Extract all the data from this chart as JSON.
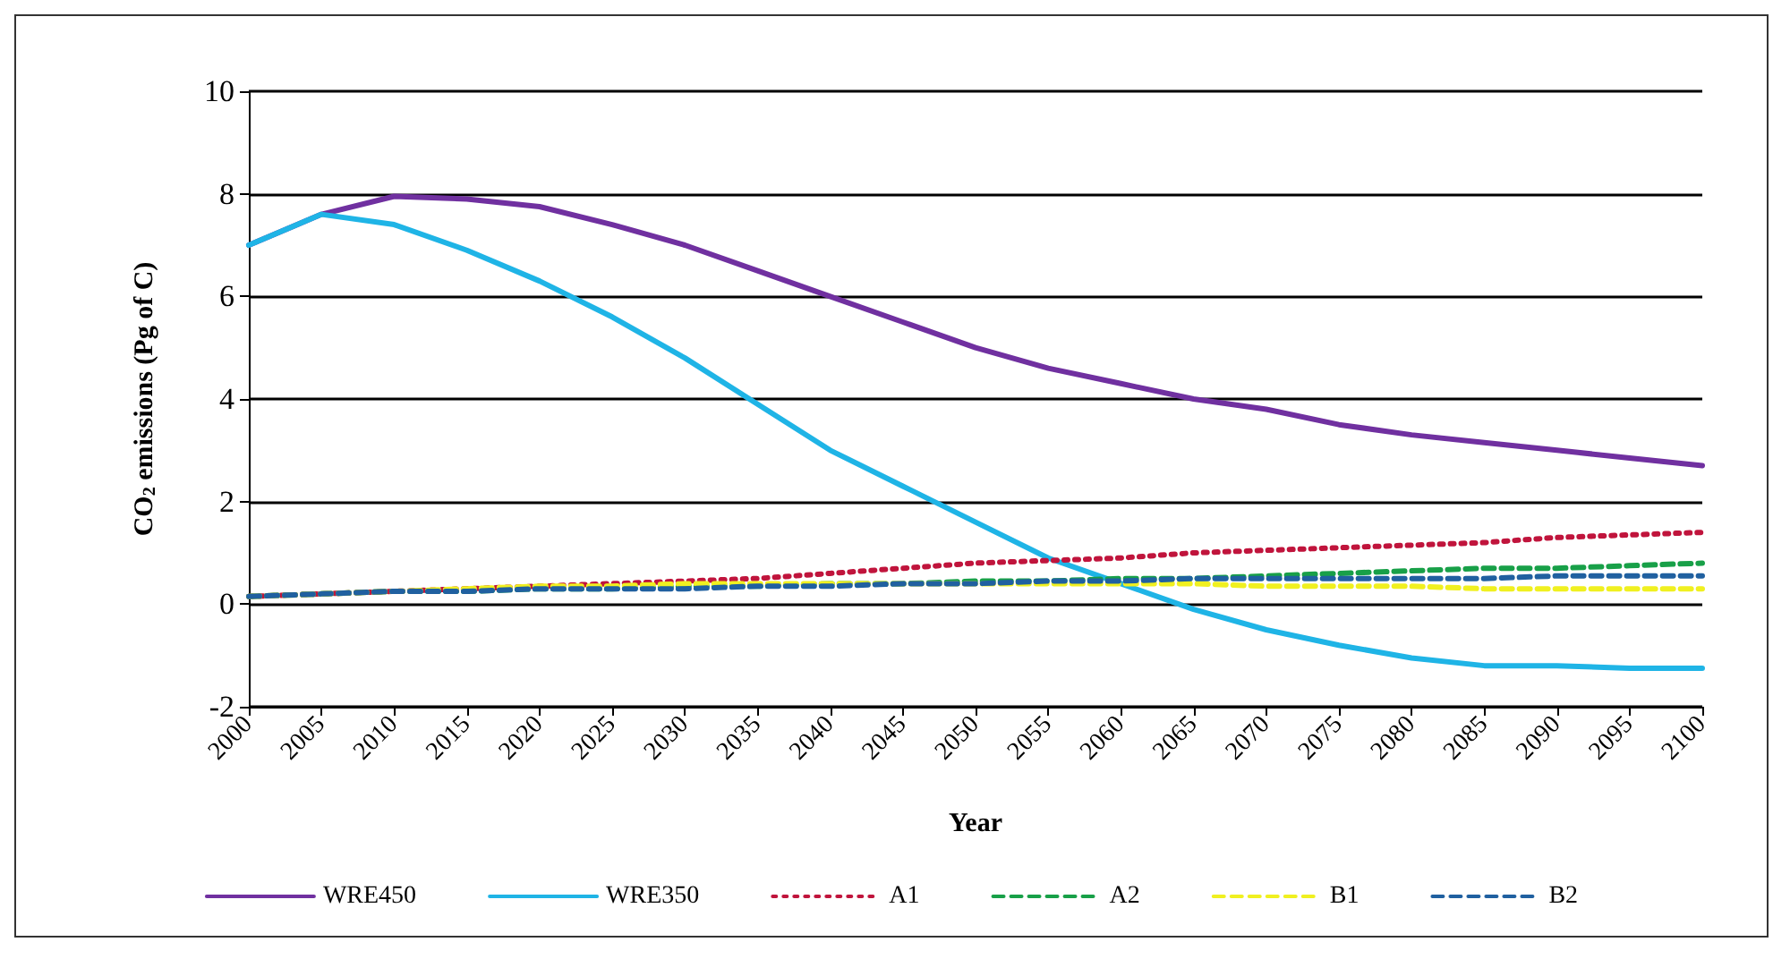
{
  "chart_data": {
    "type": "line",
    "xlabel": "Year",
    "ylabel": "CO$_{2}$ emissions (Pg of C)",
    "x": [
      2000,
      2005,
      2010,
      2015,
      2020,
      2025,
      2030,
      2035,
      2040,
      2045,
      2050,
      2055,
      2060,
      2065,
      2070,
      2075,
      2080,
      2085,
      2090,
      2095,
      2100
    ],
    "xlim": [
      2000,
      2100
    ],
    "xticks": [
      2000,
      2005,
      2010,
      2015,
      2020,
      2025,
      2030,
      2035,
      2040,
      2045,
      2050,
      2055,
      2060,
      2065,
      2070,
      2075,
      2080,
      2085,
      2090,
      2095,
      2100
    ],
    "ylim": [
      -2,
      10
    ],
    "yticks": [
      -2,
      0,
      2,
      4,
      6,
      8,
      10
    ],
    "grid": "y",
    "legend": "bottom",
    "marker": "none",
    "series": [
      {
        "name": "WRE450",
        "color": "#7030a0",
        "line_style": "solid",
        "values": [
          7.0,
          7.6,
          7.95,
          7.9,
          7.75,
          7.4,
          7.0,
          6.5,
          6.0,
          5.5,
          5.0,
          4.6,
          4.3,
          4.0,
          3.8,
          3.5,
          3.3,
          3.15,
          3.0,
          2.85,
          2.7
        ]
      },
      {
        "name": "WRE350",
        "color": "#1fb4e6",
        "line_style": "solid",
        "values": [
          7.0,
          7.6,
          7.4,
          6.9,
          6.3,
          5.6,
          4.8,
          3.9,
          3.0,
          2.3,
          1.6,
          0.9,
          0.4,
          -0.1,
          -0.5,
          -0.8,
          -1.05,
          -1.2,
          -1.2,
          -1.25,
          -1.25
        ]
      },
      {
        "name": "A1",
        "color": "#c0143c",
        "line_style": "dotted",
        "values": [
          0.15,
          0.2,
          0.25,
          0.3,
          0.35,
          0.4,
          0.45,
          0.5,
          0.6,
          0.7,
          0.8,
          0.85,
          0.9,
          1.0,
          1.05,
          1.1,
          1.15,
          1.2,
          1.3,
          1.35,
          1.4
        ]
      },
      {
        "name": "A2",
        "color": "#18a048",
        "line_style": "dashed",
        "values": [
          0.15,
          0.2,
          0.25,
          0.25,
          0.3,
          0.3,
          0.35,
          0.35,
          0.4,
          0.4,
          0.45,
          0.45,
          0.5,
          0.5,
          0.55,
          0.6,
          0.65,
          0.7,
          0.7,
          0.75,
          0.8
        ]
      },
      {
        "name": "B1",
        "color": "#f0f020",
        "line_style": "dashed",
        "values": [
          0.15,
          0.2,
          0.25,
          0.3,
          0.35,
          0.35,
          0.4,
          0.4,
          0.4,
          0.4,
          0.4,
          0.4,
          0.4,
          0.4,
          0.35,
          0.35,
          0.35,
          0.3,
          0.3,
          0.3,
          0.3
        ]
      },
      {
        "name": "B2",
        "color": "#2060a0",
        "line_style": "dashed",
        "values": [
          0.15,
          0.2,
          0.25,
          0.25,
          0.3,
          0.3,
          0.3,
          0.35,
          0.35,
          0.4,
          0.4,
          0.45,
          0.45,
          0.5,
          0.5,
          0.5,
          0.5,
          0.5,
          0.55,
          0.55,
          0.55
        ]
      }
    ]
  }
}
